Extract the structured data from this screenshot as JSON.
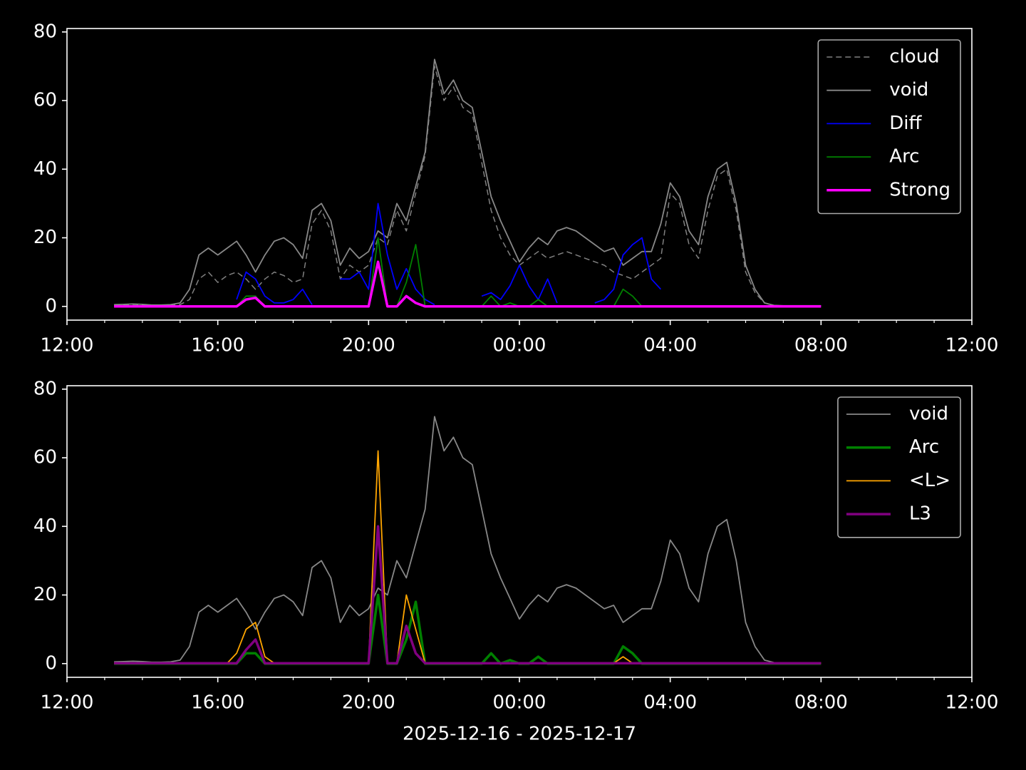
{
  "chart_data": [
    {
      "type": "line",
      "x": [
        1.25,
        1.5,
        1.75,
        2,
        2.25,
        2.5,
        2.75,
        3,
        3.25,
        3.5,
        3.75,
        4,
        4.25,
        4.5,
        4.75,
        5,
        5.25,
        5.5,
        5.75,
        6,
        6.25,
        6.5,
        6.75,
        7,
        7.25,
        7.5,
        7.75,
        8,
        8.25,
        8.5,
        8.75,
        9,
        9.25,
        9.5,
        9.75,
        10,
        10.25,
        10.5,
        10.75,
        11,
        11.25,
        11.5,
        11.75,
        12,
        12.25,
        12.5,
        12.75,
        13,
        13.25,
        13.5,
        13.75,
        14,
        14.25,
        14.5,
        14.75,
        15,
        15.25,
        15.5,
        15.75,
        16,
        16.25,
        16.5,
        16.75,
        17,
        17.25,
        17.5,
        17.75,
        18,
        18.25,
        18.5,
        18.75,
        19,
        19.25,
        19.5,
        19.75,
        20
      ],
      "xlim": [
        0,
        24
      ],
      "xticks": [
        {
          "value": 0,
          "label": "12:00"
        },
        {
          "value": 4,
          "label": "16:00"
        },
        {
          "value": 8,
          "label": "20:00"
        },
        {
          "value": 12,
          "label": "00:00"
        },
        {
          "value": 16,
          "label": "04:00"
        },
        {
          "value": 20,
          "label": "08:00"
        },
        {
          "value": 24,
          "label": "12:00"
        }
      ],
      "xminorticks": [
        1,
        2,
        3,
        5,
        6,
        7,
        9,
        10,
        11,
        13,
        14,
        15,
        17,
        18,
        19,
        21,
        22,
        23
      ],
      "ylim": [
        -4,
        81
      ],
      "yticks": [
        0,
        20,
        40,
        60,
        80
      ],
      "legend": "upper right",
      "series": [
        {
          "name": "cloud",
          "color": "#808080",
          "dash": true,
          "width": 1.5,
          "values": [
            0.3,
            0.3,
            0.3,
            0.3,
            0.3,
            0.3,
            0.3,
            0.5,
            2,
            8,
            10,
            7,
            9,
            10,
            8,
            5,
            8,
            10,
            9,
            7,
            8,
            24,
            28,
            22,
            8,
            12,
            10,
            12,
            20,
            18,
            28,
            22,
            33,
            44,
            70,
            60,
            64,
            58,
            56,
            42,
            28,
            20,
            15,
            12,
            14,
            16,
            14,
            15,
            16,
            15,
            14,
            13,
            12,
            10,
            9,
            8,
            10,
            12,
            14,
            33,
            30,
            18,
            14,
            28,
            38,
            40,
            28,
            10,
            4,
            1,
            0.2,
            0.1,
            0.1,
            0.1,
            0.1,
            0.1
          ]
        },
        {
          "name": "void",
          "color": "#888888",
          "width": 1.8,
          "values": [
            0.5,
            0.6,
            0.7,
            0.6,
            0.4,
            0.4,
            0.5,
            1,
            5,
            15,
            17,
            15,
            17,
            19,
            15,
            10,
            15,
            19,
            20,
            18,
            14,
            28,
            30,
            25,
            12,
            17,
            14,
            16,
            22,
            20,
            30,
            25,
            35,
            45,
            72,
            62,
            66,
            60,
            58,
            45,
            32,
            25,
            19,
            13,
            17,
            20,
            18,
            22,
            23,
            22,
            20,
            18,
            16,
            17,
            12,
            14,
            16,
            16,
            24,
            36,
            32,
            22,
            18,
            32,
            40,
            42,
            30,
            12,
            5,
            1,
            0.3,
            0.2,
            0.2,
            0.2,
            0.2,
            0.2
          ]
        },
        {
          "name": "Diff",
          "color": "#0000ff",
          "width": 1.8,
          "values": [
            null,
            null,
            null,
            null,
            null,
            null,
            null,
            null,
            null,
            null,
            null,
            null,
            null,
            2,
            10,
            8,
            3,
            1,
            1,
            2,
            5,
            0.5,
            null,
            null,
            8,
            8,
            10,
            5,
            30,
            15,
            5,
            11,
            5,
            2,
            0.5,
            null,
            null,
            null,
            null,
            3,
            4,
            2,
            6,
            12,
            6,
            2,
            8,
            1,
            null,
            null,
            null,
            1,
            2,
            5,
            15,
            18,
            20,
            8,
            5,
            null,
            null,
            null,
            null,
            null,
            null,
            null,
            null,
            null,
            null,
            null,
            null,
            null,
            null,
            null,
            null,
            null
          ]
        },
        {
          "name": "Arc",
          "color": "#008000",
          "width": 1.8,
          "values": [
            0,
            0,
            0,
            0,
            0,
            0,
            0,
            0,
            0,
            0,
            0,
            0,
            0,
            0,
            3,
            3,
            0,
            0,
            0,
            0,
            0,
            0,
            0,
            0,
            0,
            0,
            0,
            0,
            20,
            0,
            0,
            7,
            18,
            0,
            0,
            0,
            0,
            0,
            0,
            0,
            3,
            0,
            1,
            0,
            0,
            2,
            0,
            0,
            0,
            0,
            0,
            0,
            0,
            0,
            5,
            3,
            0,
            0,
            0,
            0,
            0,
            0,
            0,
            0,
            0,
            0,
            0,
            0,
            0,
            0,
            0,
            0,
            0,
            0,
            0,
            0
          ]
        },
        {
          "name": "Strong",
          "color": "#ff00ff",
          "width": 3.5,
          "values": [
            0,
            0,
            0,
            0,
            0,
            0,
            0,
            0,
            0,
            0,
            0,
            0,
            0,
            0,
            2,
            2.5,
            0,
            0,
            0,
            0,
            0,
            0,
            0,
            0,
            0,
            0,
            0,
            0,
            13,
            0,
            0,
            3,
            1,
            0,
            0,
            0,
            0,
            0,
            0,
            0,
            0,
            0,
            0,
            0,
            0,
            0,
            0,
            0,
            0,
            0,
            0,
            0,
            0,
            0,
            0,
            0,
            0,
            0,
            0,
            0,
            0,
            0,
            0,
            0,
            0,
            0,
            0,
            0,
            0,
            0,
            0,
            0,
            0,
            0,
            0,
            0
          ]
        }
      ]
    },
    {
      "type": "line",
      "x": [
        1.25,
        1.5,
        1.75,
        2,
        2.25,
        2.5,
        2.75,
        3,
        3.25,
        3.5,
        3.75,
        4,
        4.25,
        4.5,
        4.75,
        5,
        5.25,
        5.5,
        5.75,
        6,
        6.25,
        6.5,
        6.75,
        7,
        7.25,
        7.5,
        7.75,
        8,
        8.25,
        8.5,
        8.75,
        9,
        9.25,
        9.5,
        9.75,
        10,
        10.25,
        10.5,
        10.75,
        11,
        11.25,
        11.5,
        11.75,
        12,
        12.25,
        12.5,
        12.75,
        13,
        13.25,
        13.5,
        13.75,
        14,
        14.25,
        14.5,
        14.75,
        15,
        15.25,
        15.5,
        15.75,
        16,
        16.25,
        16.5,
        16.75,
        17,
        17.25,
        17.5,
        17.75,
        18,
        18.25,
        18.5,
        18.75,
        19,
        19.25,
        19.5,
        19.75,
        20
      ],
      "xlim": [
        0,
        24
      ],
      "xticks": [
        {
          "value": 0,
          "label": "12:00"
        },
        {
          "value": 4,
          "label": "16:00"
        },
        {
          "value": 8,
          "label": "20:00"
        },
        {
          "value": 12,
          "label": "00:00"
        },
        {
          "value": 16,
          "label": "04:00"
        },
        {
          "value": 20,
          "label": "08:00"
        },
        {
          "value": 24,
          "label": "12:00"
        }
      ],
      "xminorticks": [
        1,
        2,
        3,
        5,
        6,
        7,
        9,
        10,
        11,
        13,
        14,
        15,
        17,
        18,
        19,
        21,
        22,
        23
      ],
      "xlabel": "2025-12-16 - 2025-12-17",
      "ylim": [
        -4,
        81
      ],
      "yticks": [
        0,
        20,
        40,
        60,
        80
      ],
      "legend": "upper right",
      "series": [
        {
          "name": "void",
          "color": "#888888",
          "width": 1.8,
          "values": [
            0.5,
            0.6,
            0.7,
            0.6,
            0.4,
            0.4,
            0.5,
            1,
            5,
            15,
            17,
            15,
            17,
            19,
            15,
            10,
            15,
            19,
            20,
            18,
            14,
            28,
            30,
            25,
            12,
            17,
            14,
            16,
            22,
            20,
            30,
            25,
            35,
            45,
            72,
            62,
            66,
            60,
            58,
            45,
            32,
            25,
            19,
            13,
            17,
            20,
            18,
            22,
            23,
            22,
            20,
            18,
            16,
            17,
            12,
            14,
            16,
            16,
            24,
            36,
            32,
            22,
            18,
            32,
            40,
            42,
            30,
            12,
            5,
            1,
            0.3,
            0.2,
            0.2,
            0.2,
            0.2,
            0.2
          ]
        },
        {
          "name": "Arc",
          "color": "#008000",
          "width": 3.5,
          "values": [
            0,
            0,
            0,
            0,
            0,
            0,
            0,
            0,
            0,
            0,
            0,
            0,
            0,
            0,
            3,
            3,
            0,
            0,
            0,
            0,
            0,
            0,
            0,
            0,
            0,
            0,
            0,
            0,
            20,
            0,
            0,
            7,
            18,
            0,
            0,
            0,
            0,
            0,
            0,
            0,
            3,
            0,
            1,
            0,
            0,
            2,
            0,
            0,
            0,
            0,
            0,
            0,
            0,
            0,
            5,
            3,
            0,
            0,
            0,
            0,
            0,
            0,
            0,
            0,
            0,
            0,
            0,
            0,
            0,
            0,
            0,
            0,
            0,
            0,
            0,
            0
          ]
        },
        {
          "name": "<L>",
          "color": "#ffa500",
          "width": 1.8,
          "values": [
            0.1,
            0.1,
            0.1,
            0.1,
            0.1,
            0.1,
            0.1,
            0.1,
            0.1,
            0.1,
            0.1,
            0.1,
            0.1,
            3,
            10,
            12,
            2,
            0.1,
            0.1,
            0.1,
            0.1,
            0.1,
            0.1,
            0.1,
            0.1,
            0.1,
            0.1,
            0.1,
            62,
            0.1,
            0.1,
            20,
            10,
            0.1,
            0.1,
            0.1,
            0.1,
            0.1,
            0.1,
            0.1,
            0.1,
            0.1,
            0.1,
            0.1,
            0.1,
            0.1,
            0.1,
            0.1,
            0.1,
            0.1,
            0.1,
            0.1,
            0.1,
            0.1,
            2,
            0.1,
            0.1,
            0.1,
            0.1,
            0.1,
            0.1,
            0.1,
            0.1,
            0.1,
            0.1,
            0.1,
            0.1,
            0.1,
            0.1,
            0.1,
            0.1,
            0.1,
            0.1,
            0.1,
            0.1,
            0.1
          ]
        },
        {
          "name": "L3",
          "color": "#800080",
          "width": 3.5,
          "values": [
            0.1,
            0.1,
            0.1,
            0.1,
            0.1,
            0.1,
            0.1,
            0.1,
            0.1,
            0.1,
            0.1,
            0.1,
            0.1,
            0.1,
            4,
            7,
            0.1,
            0.1,
            0.1,
            0.1,
            0.1,
            0.1,
            0.1,
            0.1,
            0.1,
            0.1,
            0.1,
            0.1,
            40,
            0.1,
            0.1,
            11,
            3,
            0.1,
            0.1,
            0.1,
            0.1,
            0.1,
            0.1,
            0.1,
            0.1,
            0.1,
            0.1,
            0.1,
            0.1,
            0.1,
            0.1,
            0.1,
            0.1,
            0.1,
            0.1,
            0.1,
            0.1,
            0.1,
            0.1,
            0.1,
            0.1,
            0.1,
            0.1,
            0.1,
            0.1,
            0.1,
            0.1,
            0.1,
            0.1,
            0.1,
            0.1,
            0.1,
            0.1,
            0.1,
            0.1,
            0.1,
            0.1,
            0.1,
            0.1,
            0.1
          ]
        }
      ]
    }
  ]
}
